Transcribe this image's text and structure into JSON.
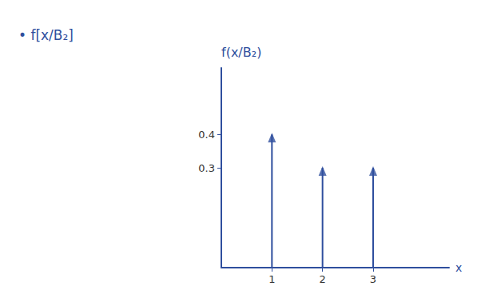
{
  "chart_data": {
    "type": "bar",
    "title": "• f[x/B₂]",
    "y_label": "f(x/B₂)",
    "x_label": "x",
    "x": [
      1,
      2,
      3
    ],
    "values": [
      0.4,
      0.3,
      0.3
    ],
    "color": "#2f4f9e",
    "marker": "arrow",
    "xlim": [
      0,
      4.5
    ],
    "ylim": [
      0,
      0.6
    ],
    "xticks": [
      1,
      2,
      3
    ],
    "yticks": [
      0.3,
      0.4
    ],
    "grid": false
  }
}
